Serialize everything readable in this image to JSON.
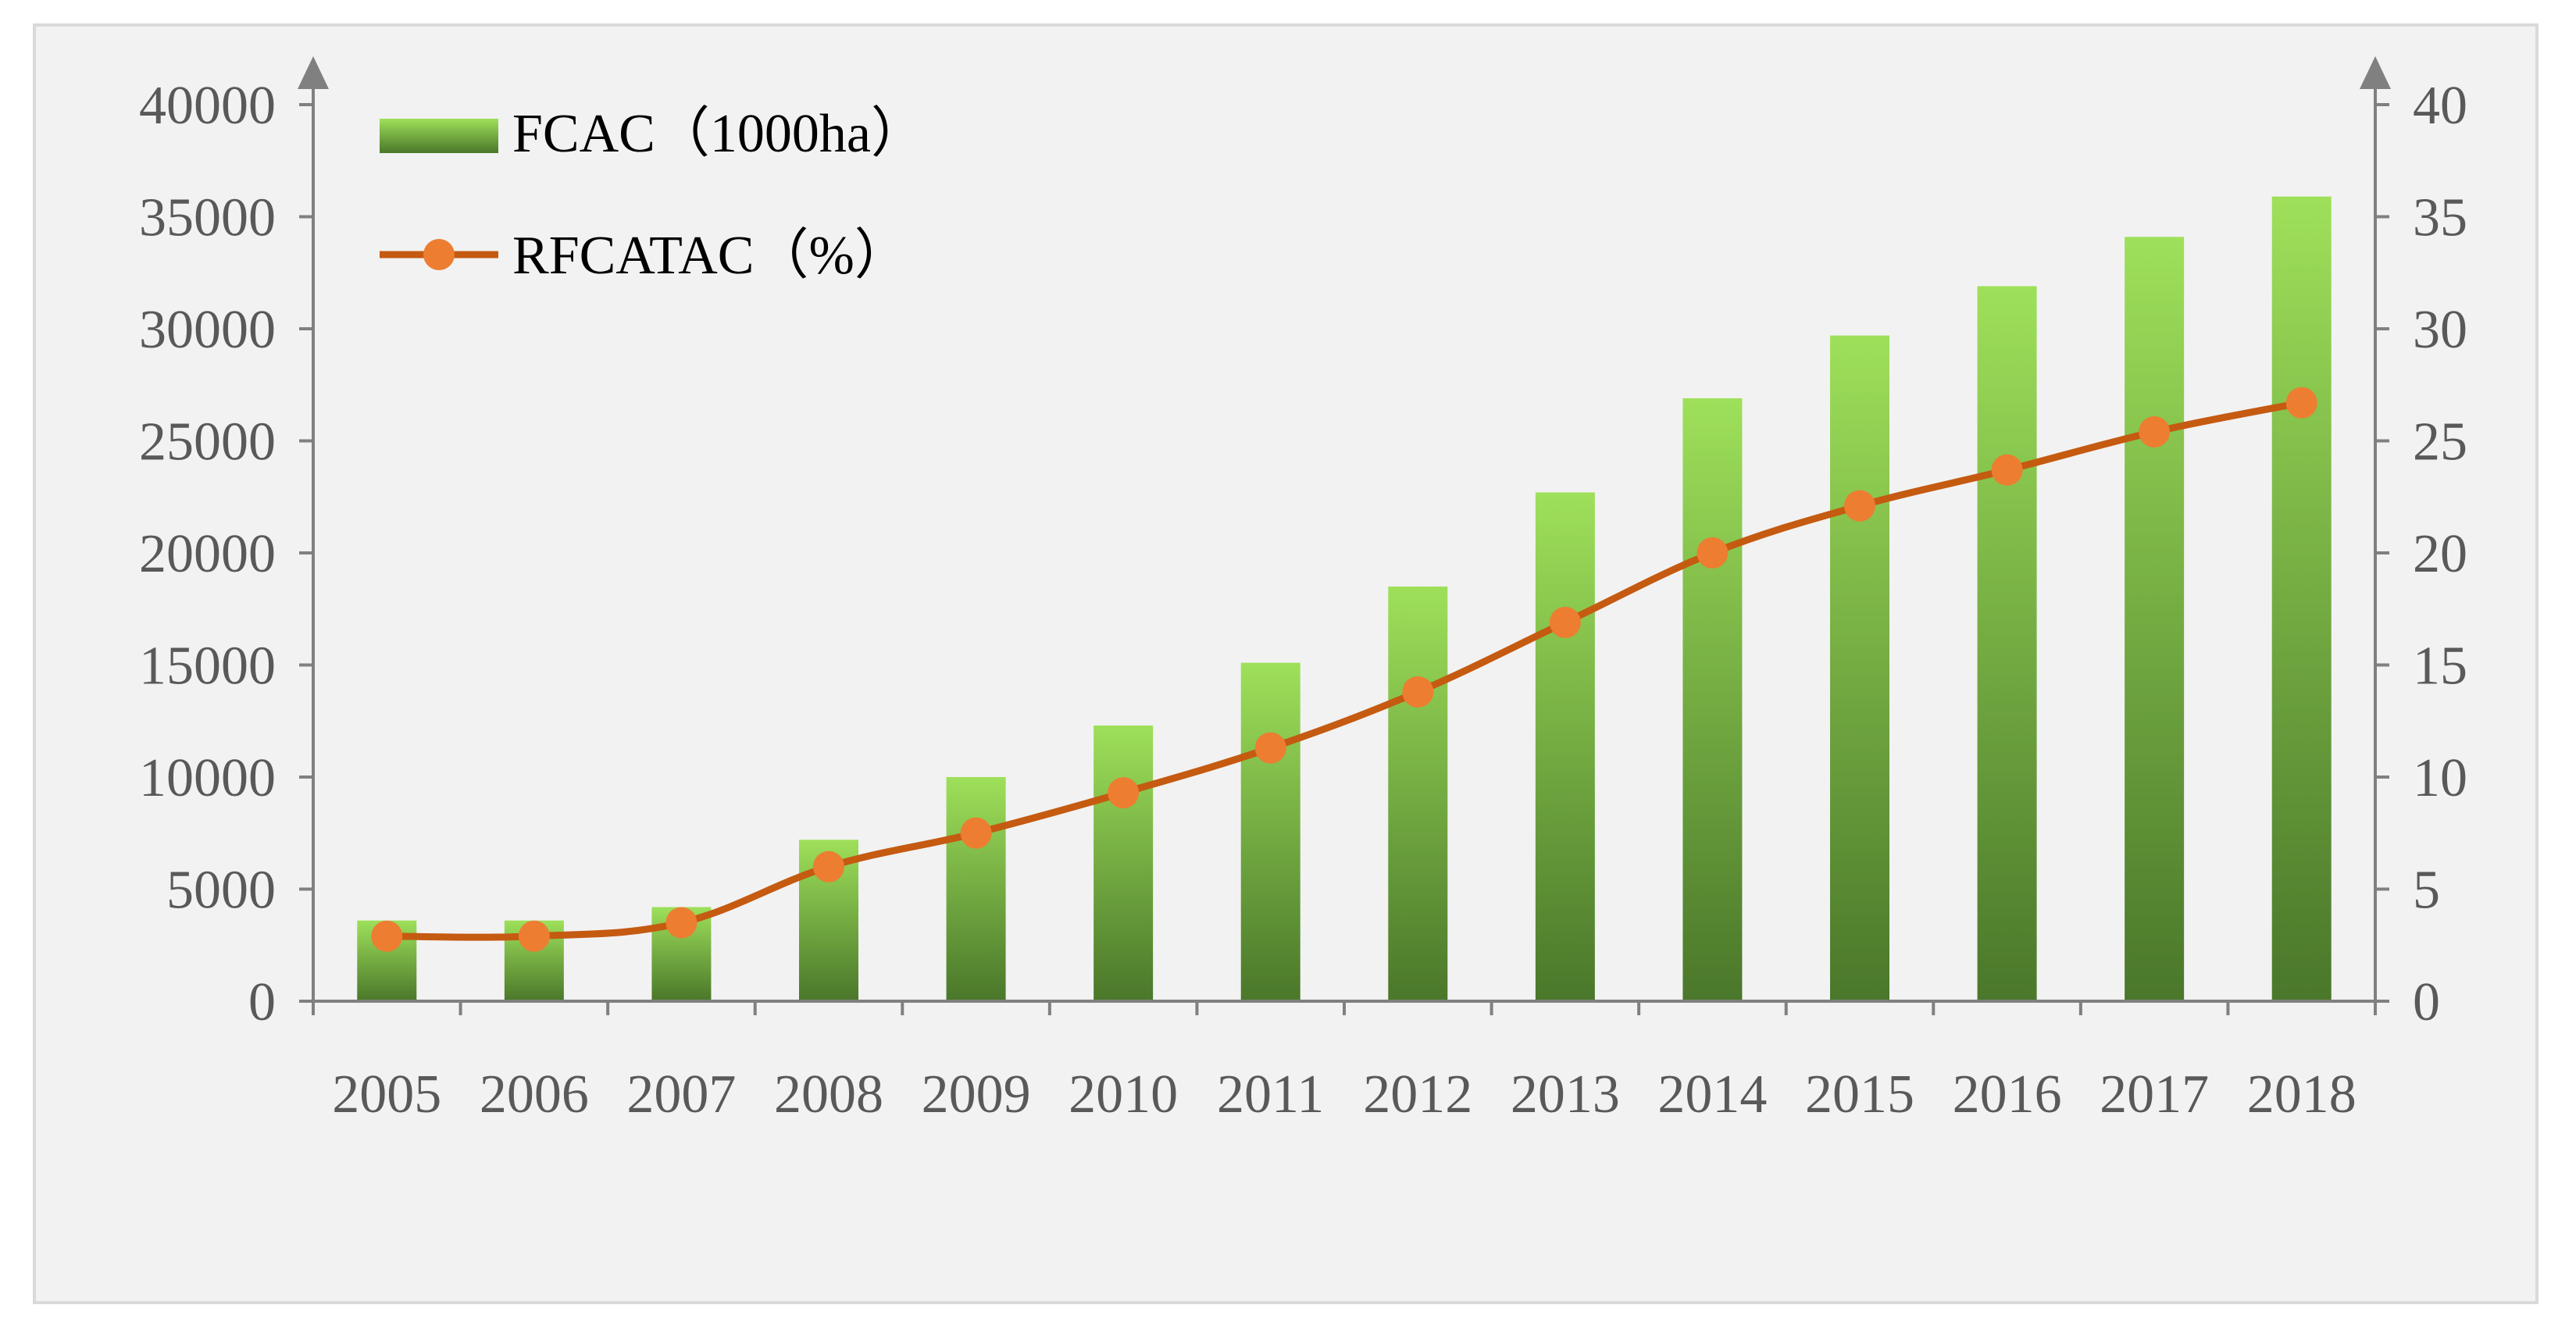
{
  "chart_data": {
    "type": "bar",
    "title": "",
    "categories": [
      "2005",
      "2006",
      "2007",
      "2008",
      "2009",
      "2010",
      "2011",
      "2012",
      "2013",
      "2014",
      "2015",
      "2016",
      "2017",
      "2018"
    ],
    "series": [
      {
        "name": "FCAC（1000ha）",
        "type": "bar",
        "axis": "left",
        "values": [
          3600,
          3600,
          4200,
          7200,
          10000,
          12300,
          15100,
          18500,
          22700,
          26900,
          29700,
          31900,
          34100,
          35900
        ]
      },
      {
        "name": "RFCATAC（%）",
        "type": "line",
        "axis": "right",
        "values": [
          2.9,
          2.9,
          3.5,
          6.0,
          7.5,
          9.3,
          11.3,
          13.8,
          16.9,
          20.0,
          22.1,
          23.7,
          25.4,
          26.7
        ]
      }
    ],
    "left_axis": {
      "ylim": [
        0,
        40000
      ],
      "ticks": [
        0,
        5000,
        10000,
        15000,
        20000,
        25000,
        30000,
        35000,
        40000
      ],
      "tick_labels": [
        "0",
        "5000",
        "10000",
        "15000",
        "20000",
        "25000",
        "30000",
        "35000",
        "40000"
      ]
    },
    "right_axis": {
      "ylim": [
        0,
        40
      ],
      "ticks": [
        0,
        5,
        10,
        15,
        20,
        25,
        30,
        35,
        40
      ],
      "tick_labels": [
        "0",
        "5",
        "10",
        "15",
        "20",
        "25",
        "30",
        "35",
        "40"
      ]
    },
    "legend": {
      "position": "top-left",
      "entries": [
        "FCAC（1000ha）",
        "RFCATAC（%）"
      ]
    },
    "grid": false,
    "xlabel": "",
    "ylabel": "",
    "colors": {
      "bar_top": "#9ee05a",
      "bar_bottom": "#4a772a",
      "line": "#c55a11",
      "marker": "#ed7d31",
      "axis": "#808080",
      "background": "#f2f2f2"
    }
  }
}
